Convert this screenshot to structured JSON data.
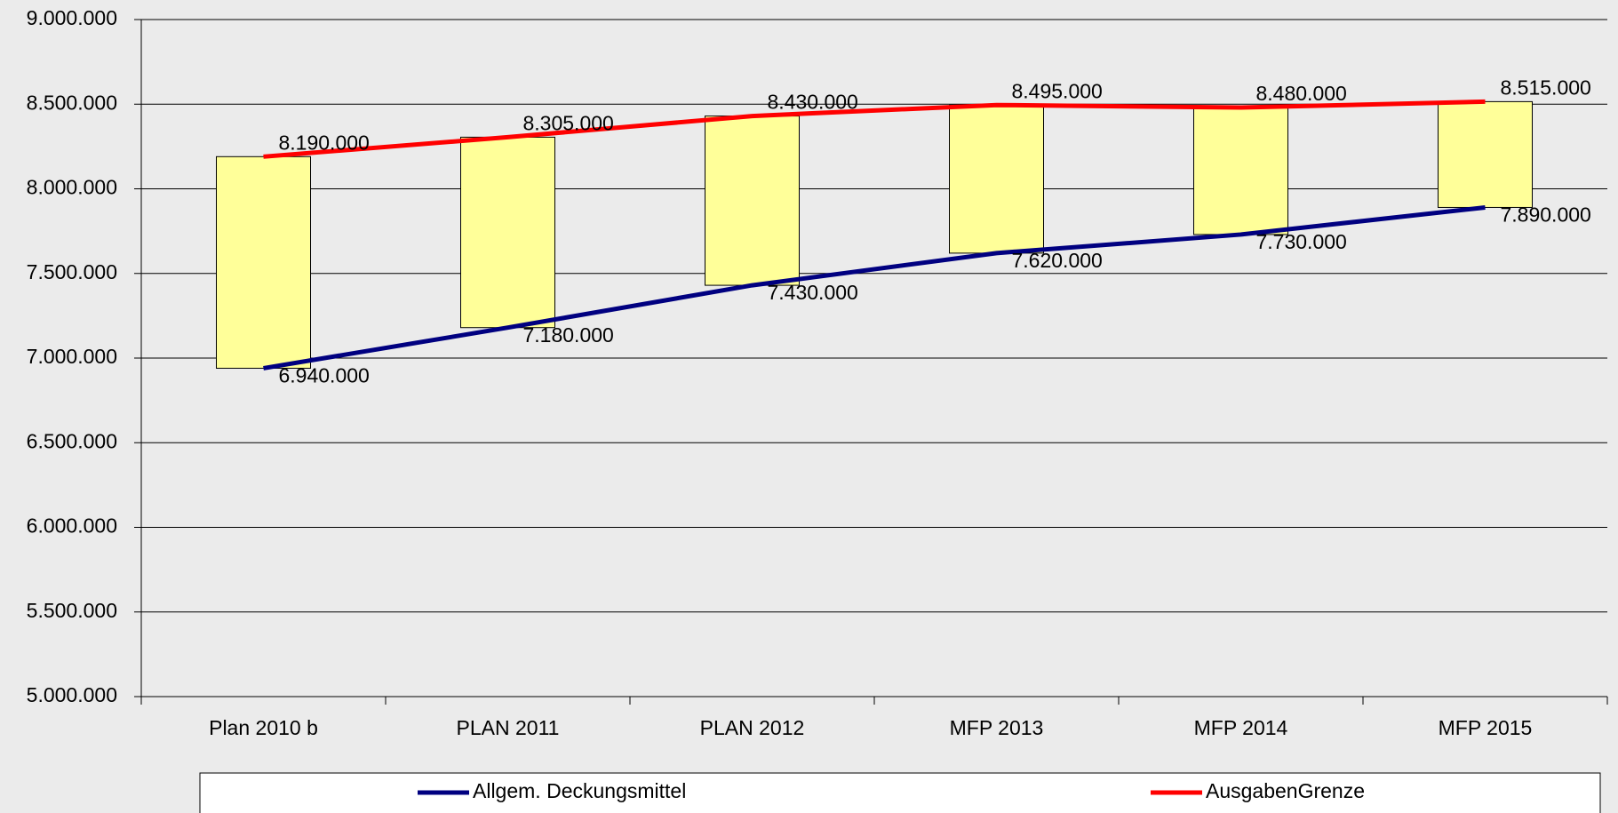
{
  "chart_data": {
    "type": "line",
    "categories": [
      "Plan 2010 b",
      "PLAN 2011",
      "PLAN 2012",
      "MFP 2013",
      "MFP 2014",
      "MFP 2015"
    ],
    "series": [
      {
        "name": "Allgem. Deckungsmittel",
        "color": "#000080",
        "values": [
          6940000,
          7180000,
          7430000,
          7620000,
          7730000,
          7890000
        ],
        "value_labels": [
          "6.940.000",
          "7.180.000",
          "7.430.000",
          "7.620.000",
          "7.730.000",
          "7.890.000"
        ]
      },
      {
        "name": "AusgabenGrenze",
        "color": "#ff0000",
        "values": [
          8190000,
          8305000,
          8430000,
          8495000,
          8480000,
          8515000
        ],
        "value_labels": [
          "8.190.000",
          "8.305.000",
          "8.430.000",
          "8.495.000",
          "8.480.000",
          "8.515.000"
        ]
      }
    ],
    "box_color": "#ffff99",
    "ylim": [
      5000000,
      9000000
    ],
    "yticks": [
      {
        "value": 5000000,
        "label": "5.000.000"
      },
      {
        "value": 5500000,
        "label": "5.500.000"
      },
      {
        "value": 6000000,
        "label": "6.000.000"
      },
      {
        "value": 6500000,
        "label": "6.500.000"
      },
      {
        "value": 7000000,
        "label": "7.000.000"
      },
      {
        "value": 7500000,
        "label": "7.500.000"
      },
      {
        "value": 8000000,
        "label": "8.000.000"
      },
      {
        "value": 8500000,
        "label": "8.500.000"
      },
      {
        "value": 9000000,
        "label": "9.000.000"
      }
    ],
    "grid": true,
    "legend": "bottom"
  }
}
